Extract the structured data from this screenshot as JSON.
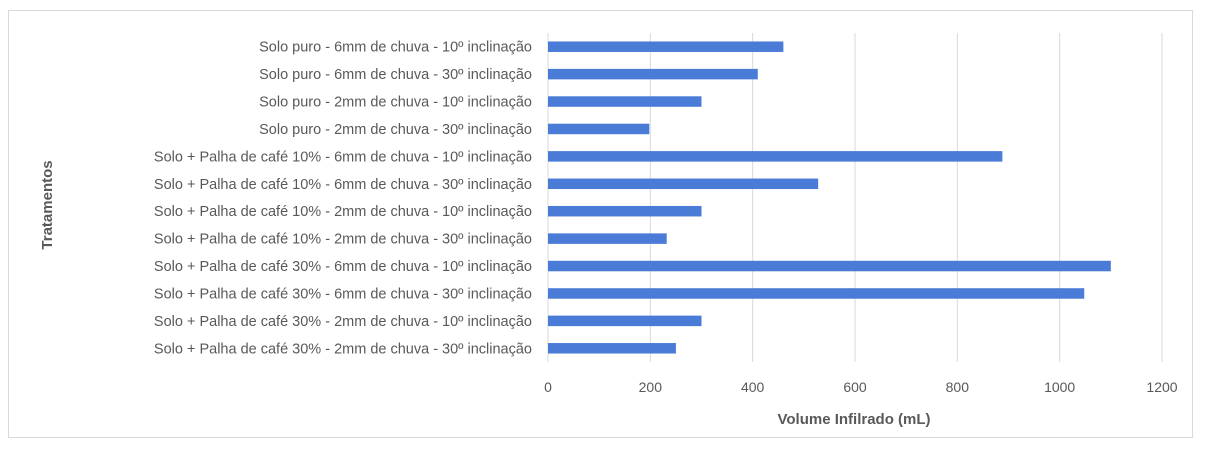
{
  "chart_data": {
    "type": "bar",
    "orientation": "horizontal",
    "categories": [
      "Solo puro - 6mm de chuva - 10º inclinação",
      "Solo puro - 6mm de chuva - 30º inclinação",
      "Solo puro - 2mm de chuva - 10º inclinação",
      "Solo puro - 2mm de chuva - 30º inclinação",
      "Solo + Palha de café 10% - 6mm de chuva - 10º inclinação",
      "Solo + Palha de café 10% - 6mm de chuva - 30º inclinação",
      "Solo + Palha de café 10% - 2mm de chuva - 10º inclinação",
      "Solo + Palha de café 10% - 2mm de chuva - 30º inclinação",
      "Solo + Palha de café 30% - 6mm de chuva - 10º inclinação",
      "Solo + Palha de café 30% - 6mm de chuva - 30º inclinação",
      "Solo + Palha de café 30% - 2mm de chuva - 10º inclinação",
      "Solo + Palha de café 30% - 2mm de chuva - 30º inclinação"
    ],
    "values": [
      460,
      410,
      300,
      198,
      888,
      528,
      300,
      232,
      1100,
      1048,
      300,
      250
    ],
    "xlabel": "Volume Infilrado (mL)",
    "ylabel": "Tratamentos",
    "xlim": [
      0,
      1200
    ],
    "xticks": [
      0,
      200,
      400,
      600,
      800,
      1000,
      1200
    ],
    "grid": "vertical",
    "legend": "none",
    "bar_color": "#4a7bd6"
  }
}
